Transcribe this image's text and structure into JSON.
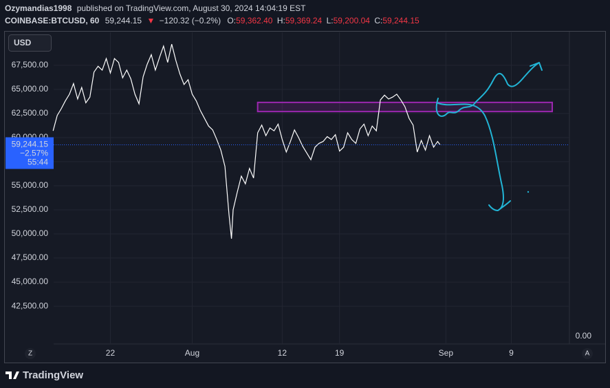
{
  "header": {
    "publisher": "Ozymandias1998",
    "published": "published on TradingView.com, August 30, 2024 14:04:19 EST",
    "symbol": "COINBASE:BTCUSD, 60",
    "price": "59,244.15",
    "arrow": "▼",
    "change": "−120.32 (−0.2%)",
    "ohlc": [
      {
        "key": "O:",
        "value": "59,362.40"
      },
      {
        "key": "H:",
        "value": "59,369.24"
      },
      {
        "key": "L:",
        "value": "59,200.04"
      },
      {
        "key": "C:",
        "value": "59,244.15"
      }
    ]
  },
  "toolbar": {
    "currency": "USD",
    "left_button": "Z",
    "right_button": "A",
    "brand": "TradingView"
  },
  "chart_data": {
    "type": "line",
    "color": "#ffffff",
    "grid": true,
    "x": [
      15.0,
      15.5,
      16.0,
      16.5,
      17.0,
      17.5,
      18.0,
      18.5,
      19.0,
      19.5,
      20.0,
      20.5,
      21.0,
      21.5,
      22.0,
      22.5,
      23.0,
      23.5,
      24.0,
      24.5,
      25.0,
      25.5,
      26.0,
      26.5,
      27.0,
      27.5,
      28.0,
      28.5,
      29.0,
      29.5,
      30.0,
      30.5,
      31.0,
      31.5,
      32.0,
      32.5,
      33.0,
      34.0,
      34.5,
      35.0,
      35.5,
      36.0,
      36.5,
      36.8,
      37.0,
      37.5,
      38.0,
      38.5,
      39.0,
      39.5,
      40.0,
      40.5,
      41.0,
      41.5,
      42.0,
      42.5,
      43.0,
      43.5,
      44.0,
      44.5,
      45.0,
      45.5,
      46.0,
      46.5,
      47.0,
      47.5,
      48.0,
      48.5,
      49.0,
      49.5,
      50.0,
      50.5,
      51.0,
      51.5,
      52.0,
      52.5,
      53.0,
      53.5,
      54.0,
      54.5,
      55.0,
      55.5,
      56.0,
      56.5,
      57.0,
      57.5,
      58.0,
      58.5,
      59.0,
      59.5,
      60.0,
      60.5,
      61.0,
      61.5,
      62.0,
      62.3
    ],
    "values": [
      60700,
      62300,
      63000,
      63800,
      64500,
      65600,
      64000,
      65200,
      63600,
      64200,
      66800,
      67400,
      67000,
      68200,
      66700,
      68200,
      67800,
      66200,
      67000,
      66100,
      64500,
      63500,
      66300,
      67600,
      68600,
      67000,
      68300,
      69500,
      67800,
      69700,
      68000,
      66600,
      65500,
      66000,
      64500,
      63800,
      62800,
      61200,
      60800,
      59800,
      58700,
      57000,
      52000,
      49500,
      52500,
      54300,
      56000,
      55200,
      56800,
      55800,
      60500,
      61300,
      60200,
      61000,
      60700,
      61400,
      59800,
      58500,
      59600,
      60800,
      60000,
      59100,
      58400,
      57700,
      59000,
      59400,
      59600,
      60100,
      59800,
      60300,
      58600,
      59000,
      60500,
      59800,
      59400,
      60900,
      61400,
      60200,
      61200,
      60700,
      63900,
      64400,
      64000,
      64200,
      64500,
      63900,
      63200,
      62000,
      61300,
      58500,
      59700,
      58700,
      60200,
      59000,
      59600,
      59244.15
    ],
    "xlim": [
      9.1,
      78.1
    ],
    "xticks": [
      22,
      {
        "value": 32,
        "label": "Aug"
      },
      {
        "value": 43,
        "label": "12"
      },
      {
        "value": 50,
        "label": "19"
      },
      {
        "value": 63,
        "label": "Sep"
      },
      {
        "value": 71,
        "label": "9"
      }
    ],
    "ylim": [
      40150,
      70850
    ],
    "yticks": [
      {
        "value": 42500,
        "label": "42,500.00"
      },
      {
        "value": 45000,
        "label": "45,000.00"
      },
      {
        "value": 47500,
        "label": "47,500.00"
      },
      {
        "value": 50000,
        "label": "50,000.00"
      },
      {
        "value": 52500,
        "label": "52,500.00"
      },
      {
        "value": 55000,
        "label": "55,000.00"
      },
      {
        "value": 57500,
        "label": "57,500.00"
      },
      {
        "value": 60000,
        "label": "60,000.00"
      },
      {
        "value": 62500,
        "label": "62,500.00"
      },
      {
        "value": 65000,
        "label": "65,000.00"
      },
      {
        "value": 67500,
        "label": "67,500.00"
      }
    ],
    "last_price": {
      "value": 59244.15,
      "label": "59,244.15",
      "change": "−2.57%",
      "countdown": "55:44",
      "color": "#2962ff"
    },
    "zone": {
      "x": [
        40.0,
        76.0
      ],
      "y": [
        62700,
        63650
      ],
      "color": "#9c27b0"
    },
    "lower_pane_ticks": [
      {
        "value": 0,
        "label": "0.00"
      }
    ]
  }
}
